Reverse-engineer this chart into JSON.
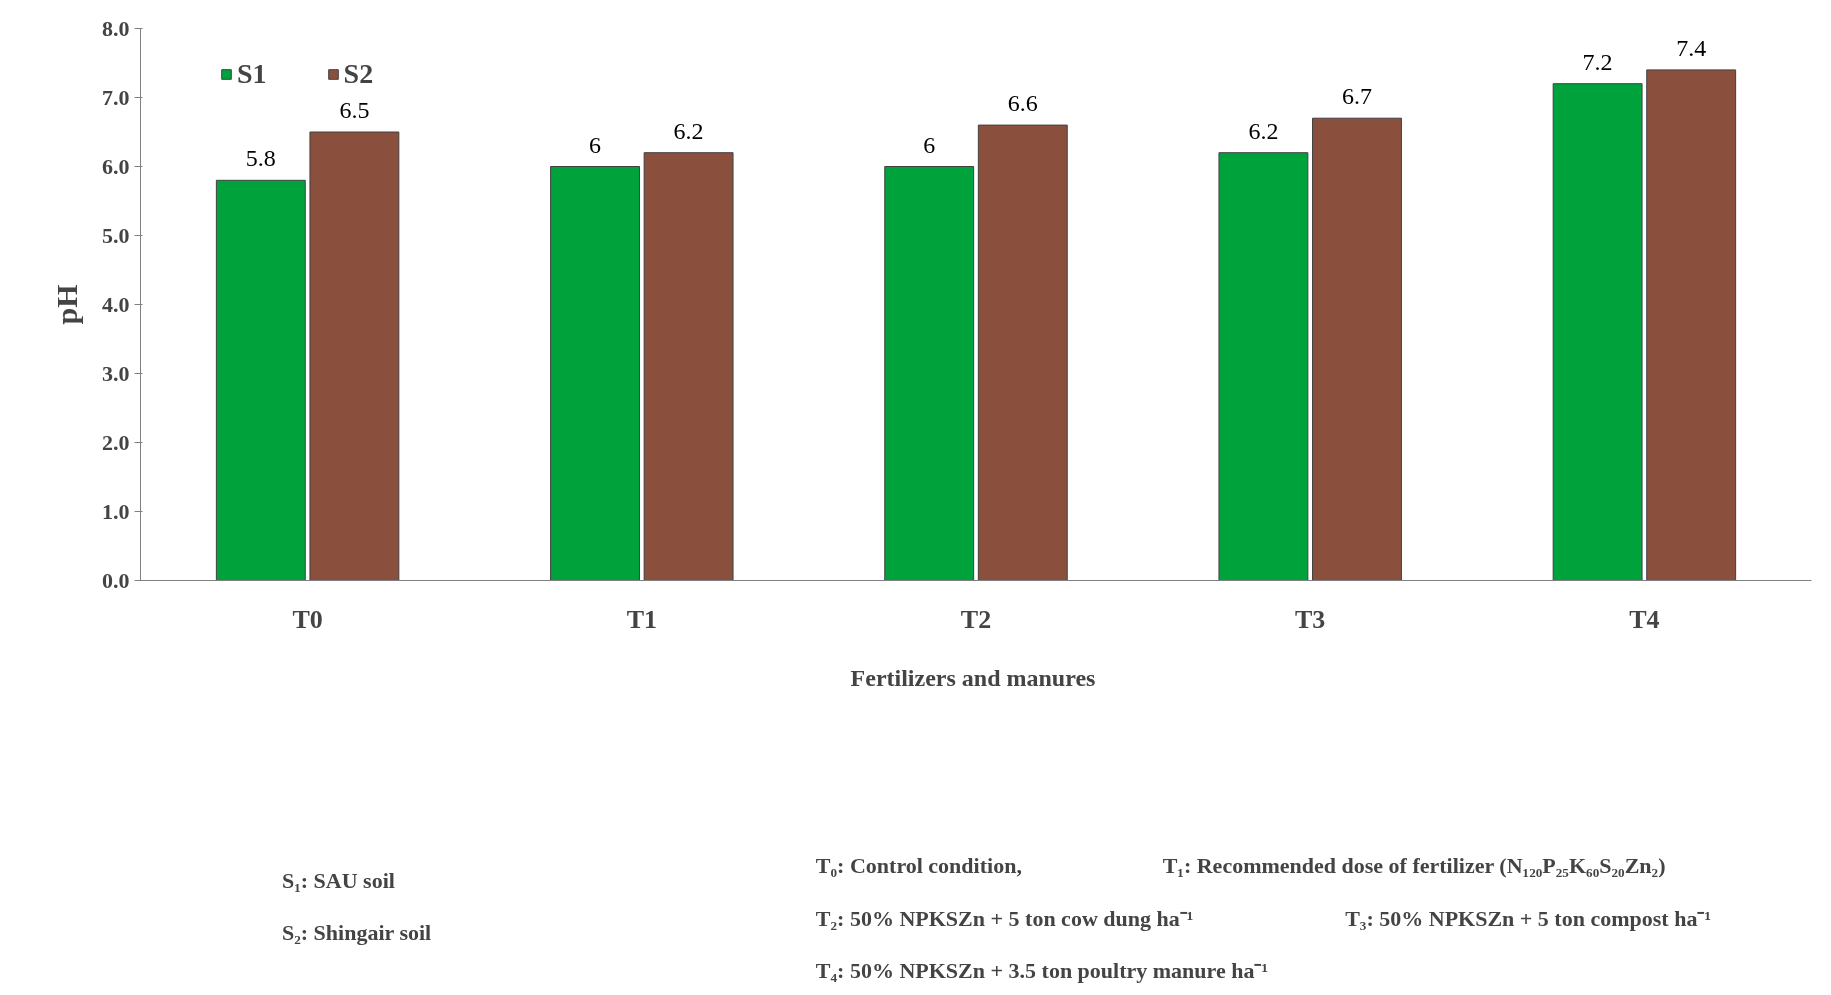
{
  "chart_data": {
    "type": "bar",
    "xlabel": "Fertilizers  and manures",
    "ylabel": "pH",
    "categories": [
      "T0",
      "T1",
      "T2",
      "T3",
      "T4"
    ],
    "series": [
      {
        "name": "S1",
        "color": "#00a23c",
        "values": [
          5.8,
          6,
          6,
          6.2,
          7.2
        ]
      },
      {
        "name": "S2",
        "color": "#8b4f3d",
        "values": [
          6.5,
          6.2,
          6.6,
          6.7,
          7.4
        ]
      }
    ],
    "ylim": [
      0,
      8
    ],
    "yticks": [
      {
        "value": 0,
        "label": "0.0"
      },
      {
        "value": 1,
        "label": "1.0"
      },
      {
        "value": 2,
        "label": "2.0"
      },
      {
        "value": 3,
        "label": "3.0"
      },
      {
        "value": 4,
        "label": "4.0"
      },
      {
        "value": 5,
        "label": "5.0"
      },
      {
        "value": 6,
        "label": "6.0"
      },
      {
        "value": 7,
        "label": "7.0"
      },
      {
        "value": 8,
        "label": "8.0"
      }
    ],
    "data_labels": true,
    "grid": false,
    "legend": "top left",
    "annotations": [
      "S₁: SAU soil",
      "S₂: Shingair soil",
      "T₀: Control condition,",
      "T₁:  Recommended dose of fertilizer (N₁₂₀P₂₅K₆₀S₂₀Zn₂)",
      "T₂: 50% NPKSZn + 5 ton cow dung ha⁻¹",
      "T₃: 50% NPKSZn + 5 ton compost ha⁻¹",
      "T₄: 50% NPKSZn + 3.5 ton poultry manure ha⁻¹"
    ]
  }
}
